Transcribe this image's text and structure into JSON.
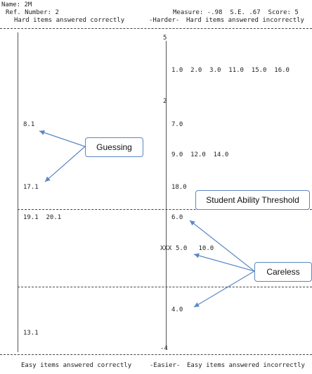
{
  "header": {
    "name": "Name: 2M",
    "ref": "Ref. Number: 2",
    "measure": "Measure: -.98  S.E. .67  Score: 5",
    "left_title": "Hard items answered correctly",
    "center_top": "-Harder-",
    "right_title": "Hard items answered incorrectly"
  },
  "footer": {
    "left_title": "Easy items answered correctly",
    "center_bottom": "-Easier-",
    "right_title": "Easy items answered incorrectly"
  },
  "scale": {
    "top": "5",
    "mid": "2",
    "bottom": "-4"
  },
  "items": {
    "r1": "1.0  2.0  3.0  11.0  15.0  16.0",
    "r2": "7.0",
    "r3": "9.0  12.0  14.0",
    "r4": "18.0",
    "r5": "6.0",
    "r6": "5.0   10.0",
    "r7": "4.0",
    "l1": "8.1",
    "l2": "17.1",
    "l3": "19.1  20.1",
    "l4": "13.1",
    "xxx": "XXX"
  },
  "callouts": {
    "guessing": "Guessing",
    "threshold": "Student Ability Threshold",
    "careless": "Careless"
  },
  "colors": {
    "arrow": "#5b87c5"
  }
}
